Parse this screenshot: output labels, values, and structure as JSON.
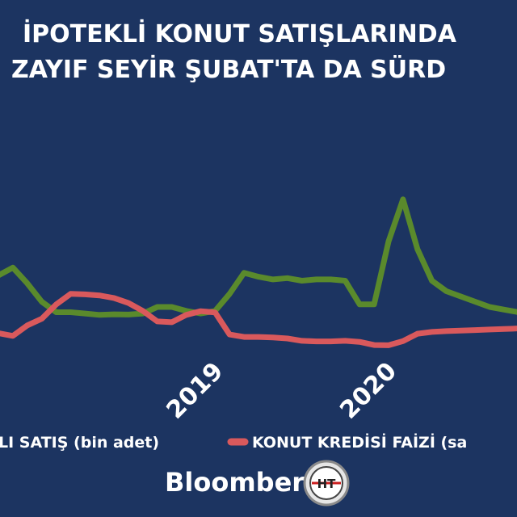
{
  "title": {
    "line1": "İPOTEKLİ KONUT SATIŞLARINDA",
    "line2": "ZAYIF SEYİR ŞUBAT'TA DA SÜRD"
  },
  "brand": {
    "name": "Bloomberg",
    "logo_mark": "HT"
  },
  "colors": {
    "background": "#1c3461",
    "sales_line": "#5a8a2c",
    "rate_line": "#d9595c",
    "text": "#ffffff"
  },
  "chart_data": {
    "type": "line",
    "title": "İPOTEKLİ KONUT SATIŞLARINDA ZAYIF SEYİR ŞUBAT'TA DA SÜRD",
    "x_tick_labels": [
      {
        "label": "2019",
        "index": 12
      },
      {
        "label": "2020",
        "index": 24
      }
    ],
    "x": [
      0,
      1,
      2,
      3,
      4,
      5,
      6,
      7,
      8,
      9,
      10,
      11,
      12,
      13,
      14,
      15,
      16,
      17,
      18,
      19,
      20,
      21,
      22,
      23,
      24,
      25,
      26,
      27,
      28,
      29,
      30,
      31,
      32,
      33,
      34,
      35,
      36
    ],
    "ylim": [
      0,
      100
    ],
    "grid": false,
    "legend_position": "bottom",
    "series": [
      {
        "name": "LI SATIŞ (bin adet)",
        "color": "#5a8a2c",
        "values": [
          32,
          35,
          29,
          22,
          18,
          18,
          17.5,
          17,
          17.2,
          17.1,
          17.5,
          20,
          20,
          18.5,
          17.5,
          18.5,
          25,
          33,
          31.5,
          30.5,
          31,
          30,
          30.5,
          30.5,
          30,
          21,
          21,
          45,
          61,
          42,
          30,
          26,
          24,
          22,
          20,
          19,
          18
        ]
      },
      {
        "name": "KONUT KREDİSİ FAİZİ (sa",
        "color": "#d9595c",
        "values": [
          10,
          9,
          13,
          15.5,
          21,
          25,
          24.8,
          24.4,
          23.4,
          21.5,
          18.5,
          14.5,
          14.2,
          17,
          18.4,
          17.9,
          9.5,
          8.6,
          8.6,
          8.4,
          8.0,
          7.1,
          6.9,
          6.9,
          7.1,
          6.7,
          5.5,
          5.4,
          7,
          9.8,
          10.5,
          10.8,
          11,
          11.2,
          11.4,
          11.6,
          11.8
        ]
      }
    ]
  }
}
